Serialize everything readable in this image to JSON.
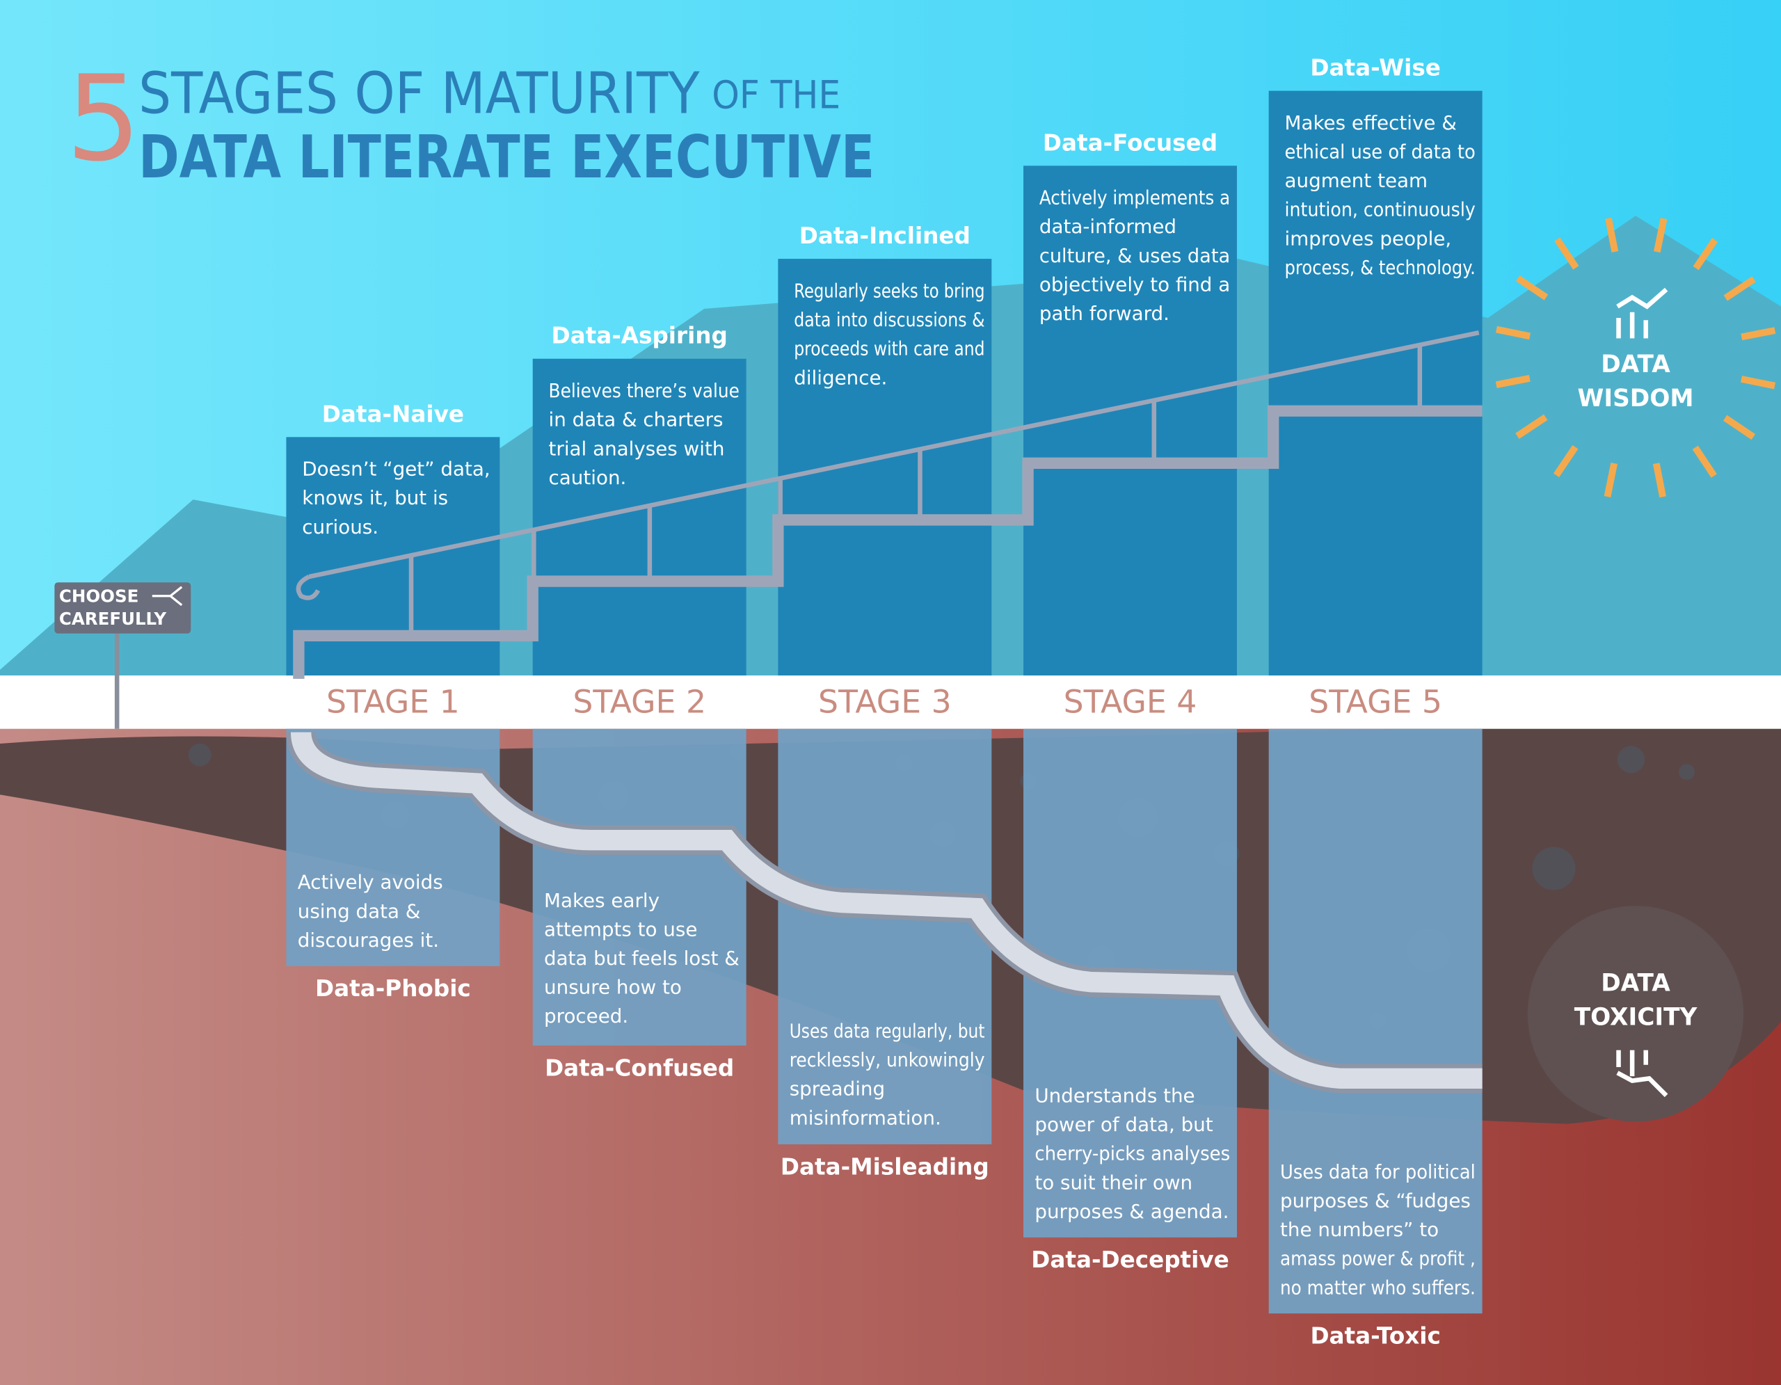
{
  "title": {
    "number": "5",
    "line1": "STAGES OF MATURITY",
    "line1_suffix": "OF THE",
    "line2": "DATA LITERATE EXECUTIVE"
  },
  "sign": {
    "line1": "CHOOSE",
    "line2": "CAREFULLY"
  },
  "stages": [
    {
      "label": "STAGE 1",
      "upper": {
        "name": "Data-Naive",
        "lines": [
          "Doesn’t “get” data,",
          "knows it, but is",
          "curious."
        ]
      },
      "lower": {
        "name": "Data-Phobic",
        "lines": [
          "Actively avoids",
          "using data &",
          "discourages it."
        ]
      }
    },
    {
      "label": "STAGE 2",
      "upper": {
        "name": "Data-Aspiring",
        "lines": [
          "Believes there’s value",
          "in data  & charters",
          "trial analyses with",
          "caution."
        ]
      },
      "lower": {
        "name": "Data-Confused",
        "lines": [
          "Makes early",
          "attempts to use",
          "data but feels lost &",
          "unsure how to",
          "proceed."
        ]
      }
    },
    {
      "label": "STAGE 3",
      "upper": {
        "name": "Data-Inclined",
        "lines": [
          "Regularly seeks to bring",
          "data into discussions &",
          "proceeds with care and",
          "diligence."
        ]
      },
      "lower": {
        "name": "Data-Misleading",
        "lines": [
          "Uses data regularly, but",
          "recklessly, unkowingly",
          "spreading",
          "misinformation."
        ]
      }
    },
    {
      "label": "STAGE 4",
      "upper": {
        "name": "Data-Focused",
        "lines": [
          "Actively implements a",
          "data-informed",
          "culture,  & uses data",
          "objectively to find a",
          "path forward."
        ]
      },
      "lower": {
        "name": "Data-Deceptive",
        "lines": [
          "Understands the",
          "power of data, but",
          "cherry-picks analyses",
          "to suit their own",
          "purposes & agenda."
        ]
      }
    },
    {
      "label": "STAGE 5",
      "upper": {
        "name": "Data-Wise",
        "lines": [
          "Makes effective &",
          "ethical use of data to",
          "augment team",
          "intution, continuously",
          "improves people,",
          "process, & technology."
        ]
      },
      "lower": {
        "name": "Data-Toxic",
        "lines": [
          "Uses data for political",
          "purposes & “fudges",
          "the numbers” to",
          "amass power & profit ,",
          "no matter who suffers."
        ]
      }
    }
  ],
  "badges": {
    "wisdom": [
      "DATA",
      "WISDOM"
    ],
    "toxicity": [
      "DATA",
      "TOXICITY"
    ]
  }
}
